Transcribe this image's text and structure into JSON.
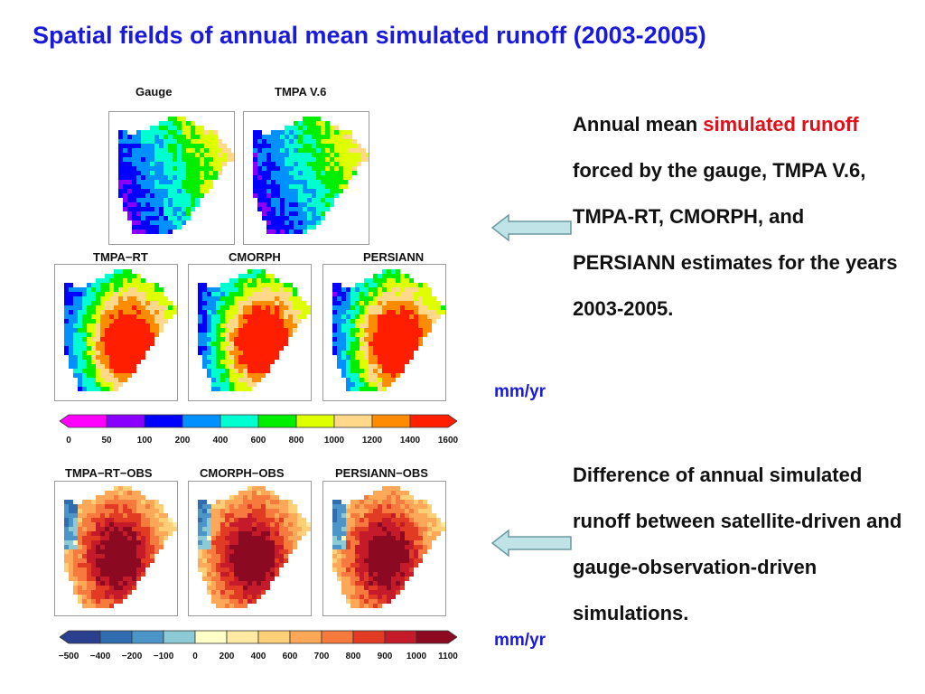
{
  "slide": {
    "title": "Spatial fields of annual mean simulated runoff (2003-2005)"
  },
  "maps": {
    "row1": [
      "Gauge",
      "TMPA V.6"
    ],
    "row2": [
      "TMPA−RT",
      "CMORPH",
      "PERSIANN"
    ],
    "row3": [
      "TMPA−RT−OBS",
      "CMORPH−OBS",
      "PERSIANN−OBS"
    ]
  },
  "colorbar_runoff": {
    "unit": "mm/yr",
    "ticks": [
      "0",
      "50",
      "100",
      "200",
      "400",
      "600",
      "800",
      "1000",
      "1200",
      "1400",
      "1600"
    ],
    "colors": [
      "#ff00ff",
      "#8a00ff",
      "#0000ff",
      "#0090ff",
      "#00ffd0",
      "#00ee00",
      "#ddff00",
      "#ffd88a",
      "#ff8c00",
      "#ff1e00"
    ]
  },
  "colorbar_diff": {
    "unit": "mm/yr",
    "ticks": [
      "−500",
      "−400",
      "−200",
      "−100",
      "0",
      "200",
      "400",
      "600",
      "700",
      "800",
      "900",
      "1000",
      "1100"
    ],
    "colors": [
      "#2b3f8f",
      "#2f6db0",
      "#4b95c8",
      "#8ccad6",
      "#ffffc8",
      "#ffe9a3",
      "#fdcf76",
      "#fca858",
      "#f67a3d",
      "#e23b24",
      "#c41a2a",
      "#8b0a22"
    ]
  },
  "descriptions": {
    "first": {
      "part1": "Annual mean ",
      "highlight": "simulated runoff",
      "part2": "  forced by the gauge, TMPA V.6, TMPA-RT, CMORPH, and PERSIANN estimates for the years 2003-2005."
    },
    "second": "Difference of annual simulated runoff between satellite-driven and gauge-observation-driven simulations."
  }
}
